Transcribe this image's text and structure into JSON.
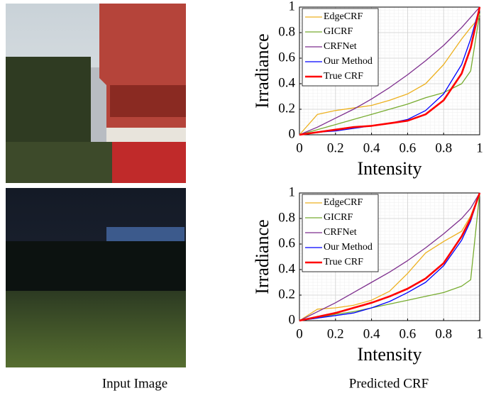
{
  "captions": [
    "Input Image",
    "Predicted CRF"
  ],
  "chart_data": [
    {
      "type": "line",
      "xlabel": "Intensity",
      "ylabel": "Irradiance",
      "x": [
        0,
        0.1,
        0.2,
        0.3,
        0.4,
        0.5,
        0.6,
        0.7,
        0.8,
        0.9,
        0.95,
        1
      ],
      "xlim": [
        0,
        1
      ],
      "ylim": [
        0,
        1
      ],
      "xticks": [
        0,
        0.2,
        0.4,
        0.6,
        0.8,
        1
      ],
      "yticks": [
        0,
        0.2,
        0.4,
        0.6,
        0.8,
        1
      ],
      "grid": true,
      "minor_grid": true,
      "legend": "upper left",
      "series": [
        {
          "name": "EdgeCRF",
          "color": "#edb120",
          "values": [
            0,
            0.16,
            0.19,
            0.21,
            0.23,
            0.27,
            0.32,
            0.4,
            0.55,
            0.75,
            0.84,
            0.92
          ]
        },
        {
          "name": "GICRF",
          "color": "#77ac30",
          "values": [
            0,
            0.04,
            0.08,
            0.12,
            0.16,
            0.2,
            0.24,
            0.29,
            0.33,
            0.4,
            0.5,
            0.95
          ]
        },
        {
          "name": "CRFNet",
          "color": "#7e2f8e",
          "values": [
            0,
            0.06,
            0.13,
            0.2,
            0.28,
            0.37,
            0.47,
            0.58,
            0.7,
            0.84,
            0.92,
            1
          ]
        },
        {
          "name": "Our Method",
          "color": "#0000ff",
          "values": [
            0,
            0.02,
            0.03,
            0.05,
            0.07,
            0.09,
            0.12,
            0.19,
            0.32,
            0.55,
            0.75,
            1
          ]
        },
        {
          "name": "True CRF",
          "color": "#ff0000",
          "values": [
            0,
            0.02,
            0.04,
            0.06,
            0.07,
            0.09,
            0.11,
            0.16,
            0.27,
            0.48,
            0.68,
            1
          ]
        }
      ]
    },
    {
      "type": "line",
      "xlabel": "Intensity",
      "ylabel": "Irradiance",
      "x": [
        0,
        0.1,
        0.2,
        0.3,
        0.4,
        0.5,
        0.6,
        0.7,
        0.8,
        0.9,
        0.95,
        1
      ],
      "xlim": [
        0,
        1
      ],
      "ylim": [
        0,
        1
      ],
      "xticks": [
        0,
        0.2,
        0.4,
        0.6,
        0.8,
        1
      ],
      "yticks": [
        0,
        0.2,
        0.4,
        0.6,
        0.8,
        1
      ],
      "grid": true,
      "minor_grid": true,
      "legend": "upper left",
      "series": [
        {
          "name": "EdgeCRF",
          "color": "#edb120",
          "values": [
            0,
            0.09,
            0.1,
            0.12,
            0.16,
            0.23,
            0.37,
            0.53,
            0.62,
            0.7,
            0.82,
            1
          ]
        },
        {
          "name": "GICRF",
          "color": "#77ac30",
          "values": [
            0,
            0.02,
            0.05,
            0.07,
            0.1,
            0.13,
            0.16,
            0.19,
            0.22,
            0.27,
            0.32,
            1
          ]
        },
        {
          "name": "CRFNet",
          "color": "#7e2f8e",
          "values": [
            0,
            0.07,
            0.14,
            0.22,
            0.3,
            0.38,
            0.47,
            0.57,
            0.68,
            0.8,
            0.88,
            1
          ]
        },
        {
          "name": "Our Method",
          "color": "#0000ff",
          "values": [
            0,
            0.02,
            0.04,
            0.06,
            0.1,
            0.15,
            0.22,
            0.3,
            0.43,
            0.63,
            0.78,
            1
          ]
        },
        {
          "name": "True CRF",
          "color": "#ff0000",
          "values": [
            0,
            0.03,
            0.06,
            0.1,
            0.14,
            0.19,
            0.25,
            0.33,
            0.45,
            0.66,
            0.8,
            1
          ]
        }
      ]
    }
  ]
}
